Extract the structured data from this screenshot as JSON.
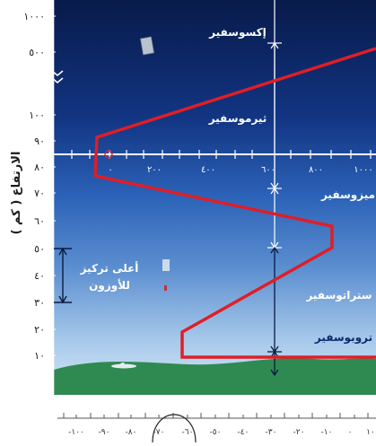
{
  "y_axis": {
    "title": "الارتفاع ( كم )",
    "upper_ticks": [
      "١٠٠٠",
      "٥٠٠"
    ],
    "lower_ticks": [
      "١٠٠",
      "٩٠",
      "٨٠",
      "٧٠",
      "٦٠",
      "٥٠",
      "٤٠",
      "٣٠",
      "٢٠",
      "١٠"
    ]
  },
  "mid_scale_ticks": [
    "١٠٠٠",
    "٨٠٠",
    "٦٠٠",
    "٤٠٠",
    "٢٠٠",
    "٠"
  ],
  "x_axis_ticks": [
    "١٠",
    "٠",
    "-١٠",
    "-٢٠",
    "-٣٠",
    "-٤٠",
    "-٥٠",
    "-٦٠",
    "-٧٠",
    "-٨٠",
    "-٩٠",
    "-١٠٠"
  ],
  "layers": {
    "exosphere": "إكسوسفير",
    "thermosphere": "ثيرموسفير",
    "mesosphere": "ميزوسفير",
    "stratosphere": "ستراتوسفير",
    "troposphere": "تروبوسفير"
  },
  "ozone_label_line1": "أعلى تركيز",
  "ozone_label_line2": "للأوزون",
  "colors": {
    "sky_top": "#0a1d4e",
    "sky_mid": "#2e61b4",
    "sky_bottom": "#c4dcf2",
    "profile": "#e01e26",
    "ground": "#2f8a52",
    "label": "#ffffff"
  }
}
